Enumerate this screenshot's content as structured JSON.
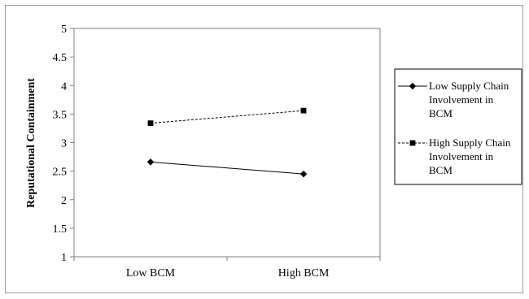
{
  "chart_data": {
    "type": "line",
    "categories": [
      "Low BCM",
      "High BCM"
    ],
    "series": [
      {
        "name": "Low Supply Chain Involvement in BCM",
        "values": [
          2.66,
          2.45
        ],
        "line": "solid",
        "marker": "diamond"
      },
      {
        "name": "High Supply Chain Involvement in BCM",
        "values": [
          3.34,
          3.56
        ],
        "line": "dashed",
        "marker": "square"
      }
    ],
    "legend_lines": [
      [
        "Low Supply Chain",
        "Involvement in",
        "BCM"
      ],
      [
        "High Supply Chain",
        "Involvement in",
        "BCM"
      ]
    ],
    "ylabel": "Reputational Containment",
    "xlabel": "",
    "ylim": [
      1,
      5
    ],
    "yticks": [
      "1",
      "1.5",
      "2",
      "2.5",
      "3",
      "3.5",
      "4",
      "4.5",
      "5"
    ],
    "grid": false,
    "legend_position": "right"
  }
}
